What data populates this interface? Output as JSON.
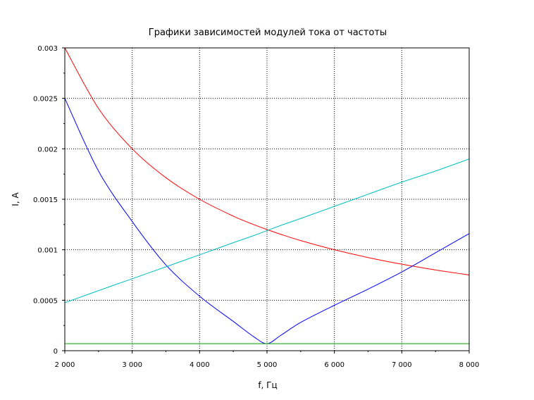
{
  "chart_data": {
    "type": "line",
    "title": "Графики зависимостей модулей тока от частоты",
    "xlabel": "f, Гц",
    "ylabel": "I, A",
    "xlim": [
      2000,
      8000
    ],
    "ylim": [
      0,
      0.003
    ],
    "grid": true,
    "x_ticks": [
      "2 000",
      "3 000",
      "4 000",
      "5 000",
      "6 000",
      "7 000",
      "8 000"
    ],
    "x_tick_values": [
      2000,
      3000,
      4000,
      5000,
      6000,
      7000,
      8000
    ],
    "y_ticks": [
      "0",
      "0.0005",
      "0.001",
      "0.0015",
      "0.002",
      "0.0025",
      "0.003"
    ],
    "y_tick_values": [
      0,
      0.0005,
      0.001,
      0.0015,
      0.002,
      0.0025,
      0.003
    ],
    "x": [
      2000,
      2500,
      3000,
      3500,
      4000,
      4500,
      4800,
      5000,
      5200,
      5500,
      6000,
      6500,
      7000,
      7500,
      8000
    ],
    "series": [
      {
        "color": "#ff0000",
        "values": [
          0.003,
          0.0024,
          0.002,
          0.001714,
          0.0015,
          0.001333,
          0.00125,
          0.0012,
          0.001154,
          0.001091,
          0.001,
          0.000923,
          0.000857,
          0.0008,
          0.00075
        ]
      },
      {
        "color": "#0000ff",
        "values": [
          0.0025,
          0.00178,
          0.00128,
          0.00085,
          0.00054,
          0.00029,
          0.00014,
          7e-05,
          0.00015,
          0.00028,
          0.00045,
          0.00061,
          0.00078,
          0.00097,
          0.00116
        ]
      },
      {
        "color": "#00bfbf",
        "values": [
          0.000475,
          0.000595,
          0.000713,
          0.000831,
          0.00095,
          0.00107,
          0.00114,
          0.00119,
          0.00124,
          0.00131,
          0.00143,
          0.00155,
          0.00167,
          0.00178,
          0.0019
        ]
      },
      {
        "color": "#00a000",
        "values": [
          7e-05,
          7e-05,
          7e-05,
          7e-05,
          7e-05,
          7e-05,
          7e-05,
          7e-05,
          7e-05,
          7e-05,
          7e-05,
          7e-05,
          7e-05,
          7e-05,
          7e-05
        ]
      }
    ]
  }
}
